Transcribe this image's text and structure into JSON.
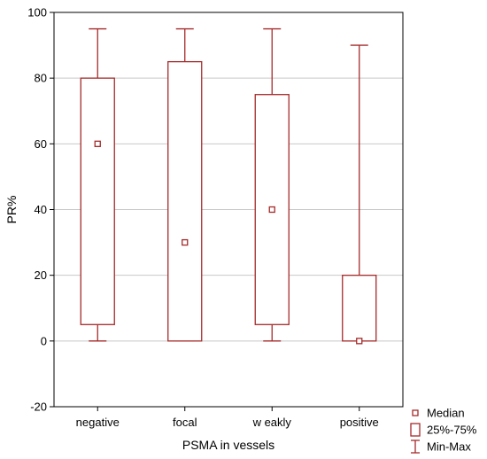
{
  "chart_data": {
    "type": "boxplot",
    "title": "",
    "xlabel": "PSMA in vessels",
    "ylabel": "PR%",
    "ylim": [
      -20,
      100
    ],
    "yticks": [
      -20,
      0,
      20,
      40,
      60,
      80,
      100
    ],
    "grid": true,
    "categories": [
      "negative",
      "focal",
      "w eakly",
      "positive"
    ],
    "boxes": [
      {
        "category": "negative",
        "min": 0,
        "q1": 5,
        "median": 60,
        "q3": 80,
        "max": 95
      },
      {
        "category": "focal",
        "min": 0,
        "q1": 0,
        "median": 30,
        "q3": 85,
        "max": 95
      },
      {
        "category": "w eakly",
        "min": 0,
        "q1": 5,
        "median": 40,
        "q3": 75,
        "max": 95
      },
      {
        "category": "positive",
        "min": 0,
        "q1": 0,
        "median": 0,
        "q3": 20,
        "max": 90
      }
    ],
    "legend": {
      "placement": "bottom-right",
      "items": [
        {
          "symbol": "small-square",
          "label": "Median"
        },
        {
          "symbol": "box",
          "label": "25%-75%"
        },
        {
          "symbol": "whisker",
          "label": "Min-Max"
        }
      ]
    },
    "colors": {
      "box": "#a52a2a",
      "grid": "#c8c8c8",
      "axis": "#000000"
    }
  }
}
